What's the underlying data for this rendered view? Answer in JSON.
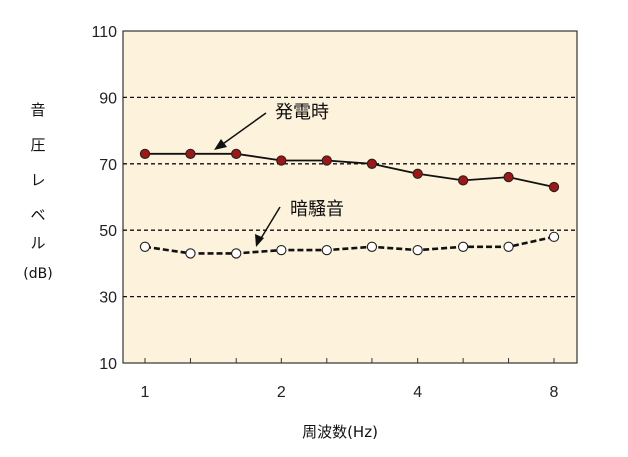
{
  "chart_data": {
    "type": "line",
    "xlabel": "周波数(Hz)",
    "ylabel_chars": [
      "音",
      "圧",
      "レ",
      "ベ",
      "ル"
    ],
    "ylabel_unit": "(dB)",
    "ylim": [
      10,
      110
    ],
    "yticks": [
      10,
      30,
      50,
      70,
      90,
      110
    ],
    "xticks": [
      "1",
      "2",
      "4",
      "8"
    ],
    "xscale": "log2",
    "xlim": [
      1,
      8
    ],
    "grid": "horizontal dashed",
    "x": [
      1,
      1.26,
      1.59,
      2,
      2.52,
      3.17,
      4,
      5.04,
      6.35,
      8
    ],
    "series": [
      {
        "name": "発電時",
        "values": [
          73,
          73,
          73,
          71,
          71,
          70,
          67,
          65,
          66,
          63
        ],
        "color": "#a01515",
        "marker": "filled-circle",
        "line": "solid"
      },
      {
        "name": "暗騒音",
        "values": [
          45,
          43,
          43,
          44,
          44,
          45,
          44,
          45,
          45,
          48
        ],
        "color": "#ffffff",
        "marker": "open-circle",
        "line": "dashed"
      }
    ],
    "plot_background": "#fdf3dd"
  }
}
